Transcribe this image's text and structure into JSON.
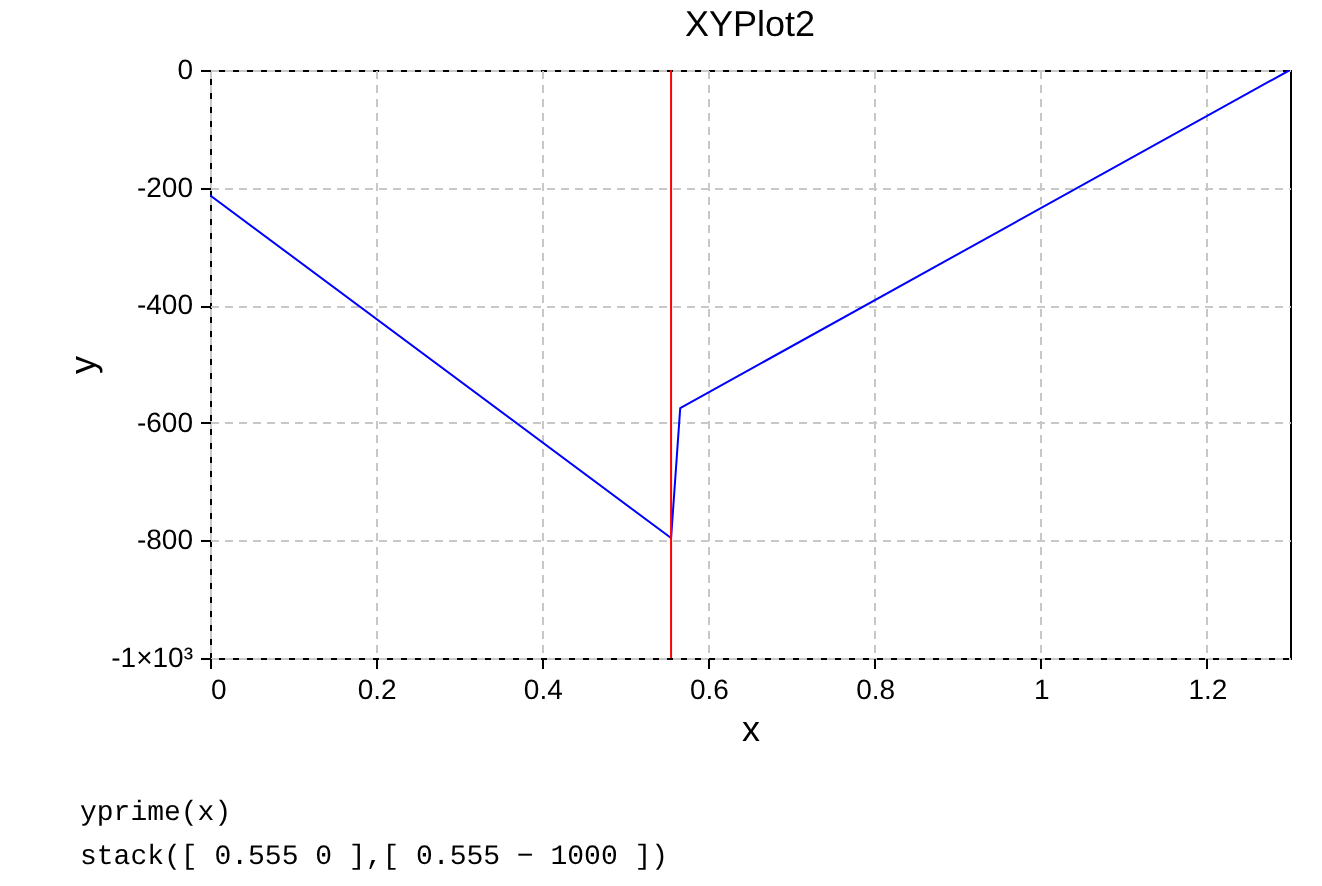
{
  "chart_data": {
    "type": "line",
    "title": "XYPlot2",
    "xlabel": "x",
    "ylabel": "y",
    "xlim": [
      0,
      1.3
    ],
    "xticks": [
      0,
      0.2,
      0.4,
      0.6,
      0.8,
      1,
      1.2
    ],
    "ylim": [
      -1000,
      0
    ],
    "yticks": [
      {
        "value": -1000,
        "label": "-1×10³"
      },
      -800,
      -600,
      -400,
      -200,
      0
    ],
    "grid": true,
    "series": [
      {
        "color": "#0000ff",
        "x": [
          0,
          0.555,
          0.566,
          1.3
        ],
        "values": [
          -213,
          -796,
          -575,
          0
        ]
      },
      {
        "color": "#ff0000",
        "x": [
          0.555,
          0.555
        ],
        "values": [
          0,
          -1000
        ]
      }
    ],
    "annotations": [
      "yprime(x)",
      "stack([ 0.555 0 ],[ 0.555 − 1000 ])"
    ]
  }
}
